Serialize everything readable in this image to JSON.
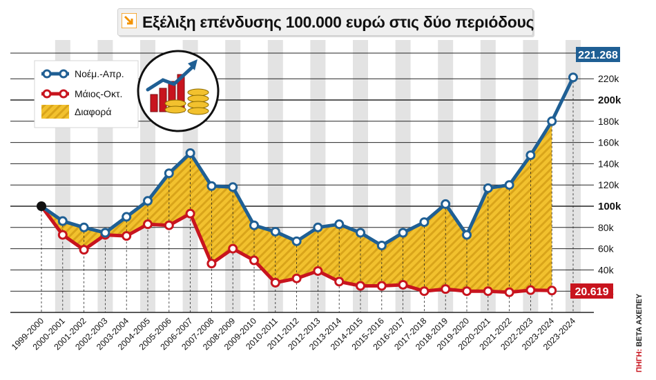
{
  "title": "Εξέλιξη επένδυσης 100.000 ευρώ στις δύο περιόδους",
  "source_label": "ΠΗΓΗ:",
  "source_text": "BETA ΑΧΕΠΕΥ",
  "colors": {
    "blue": "#1f5f94",
    "red": "#c8141e",
    "gold": "#f2c12e",
    "orange": "#f39200",
    "stripe": "#e3e3e3"
  },
  "icon": "chart-growth-coins-icon",
  "chart_data": {
    "type": "line",
    "categories": [
      "1999-2000",
      "2000-2001",
      "2001-2002",
      "2002-2003",
      "2003-2004",
      "2004-2005",
      "2005-2006",
      "2006-2007",
      "2007-2008",
      "2008-2009",
      "2009-2010",
      "2010-2011",
      "2011-2012",
      "2012-2013",
      "2013-2014",
      "2014-2015",
      "2015-2016",
      "2016-2017",
      "2017-2018",
      "2018-2019",
      "2019-2020",
      "2020-2021",
      "2021-2022",
      "2022-2023",
      "2023-2024",
      "2023-2024"
    ],
    "series": [
      {
        "name": "Νοέμ.-Απρ.",
        "values": [
          100,
          86,
          80,
          75,
          90,
          105,
          131,
          150,
          119,
          118,
          82,
          76,
          67,
          80,
          83,
          75,
          63,
          75,
          85,
          102,
          73,
          117,
          120,
          148,
          180,
          221.268
        ]
      },
      {
        "name": "Μάιος-Οκτ.",
        "values": [
          100,
          73,
          59,
          73,
          72,
          83,
          82,
          93,
          46,
          60,
          49,
          28,
          32,
          39,
          29,
          25,
          25,
          26,
          20,
          22,
          20,
          20,
          19,
          21,
          20.619,
          null
        ]
      }
    ],
    "difference_label": "Διαφορά",
    "ylim": [
      0,
      240
    ],
    "yticks": [
      "20k",
      "40k",
      "60k",
      "80k",
      "100k",
      "120k",
      "140k",
      "160k",
      "180k",
      "200k",
      "220k"
    ],
    "ytick_values": [
      20,
      40,
      60,
      80,
      100,
      120,
      140,
      160,
      180,
      200,
      220
    ],
    "bold_ticks": [
      "100k",
      "200k"
    ],
    "end_labels": {
      "blue": "221.268",
      "red": "20.619"
    },
    "grid": true,
    "legend_position": "top-left"
  }
}
